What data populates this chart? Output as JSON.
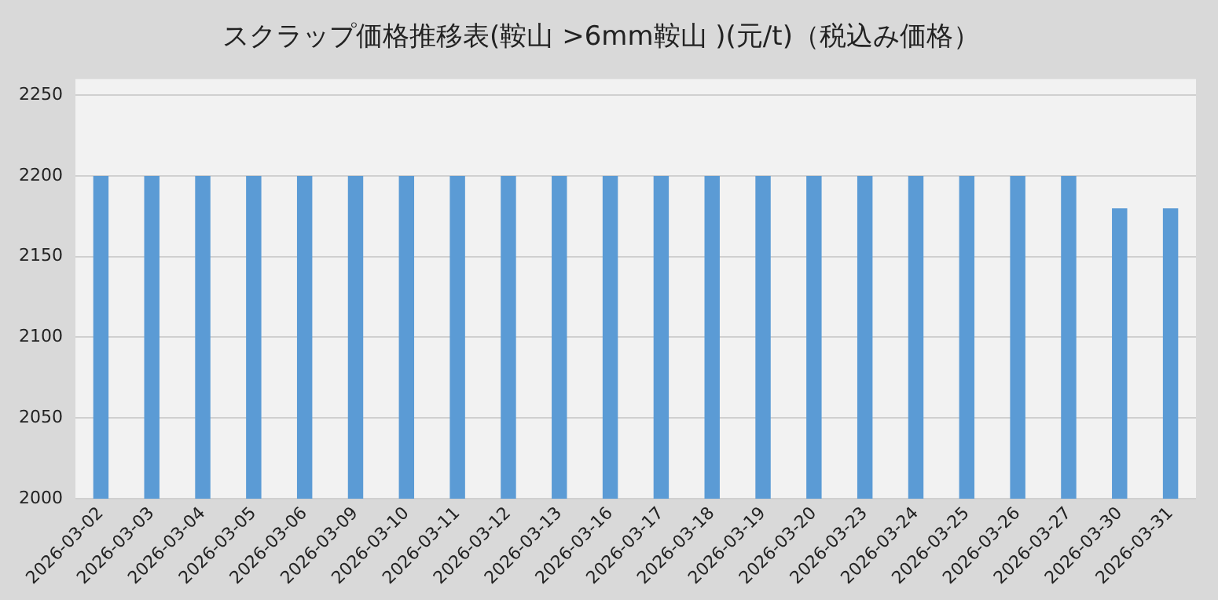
{
  "chart_data": {
    "type": "bar",
    "title": "スクラップ価格推移表(鞍山 >6mm鞍山 )(元/t)（税込み価格）",
    "categories": [
      "2026-03-02",
      "2026-03-03",
      "2026-03-04",
      "2026-03-05",
      "2026-03-06",
      "2026-03-09",
      "2026-03-10",
      "2026-03-11",
      "2026-03-12",
      "2026-03-13",
      "2026-03-16",
      "2026-03-17",
      "2026-03-18",
      "2026-03-19",
      "2026-03-20",
      "2026-03-23",
      "2026-03-24",
      "2026-03-25",
      "2026-03-26",
      "2026-03-27",
      "2026-03-30",
      "2026-03-31"
    ],
    "values": [
      2200,
      2200,
      2200,
      2200,
      2200,
      2200,
      2200,
      2200,
      2200,
      2200,
      2200,
      2200,
      2200,
      2200,
      2200,
      2200,
      2200,
      2200,
      2200,
      2200,
      2180,
      2180
    ],
    "color": "#5b9bd5",
    "ylim": [
      2000,
      2260
    ],
    "yticks": [
      2000,
      2050,
      2100,
      2150,
      2200,
      2250
    ],
    "grid": "y"
  }
}
